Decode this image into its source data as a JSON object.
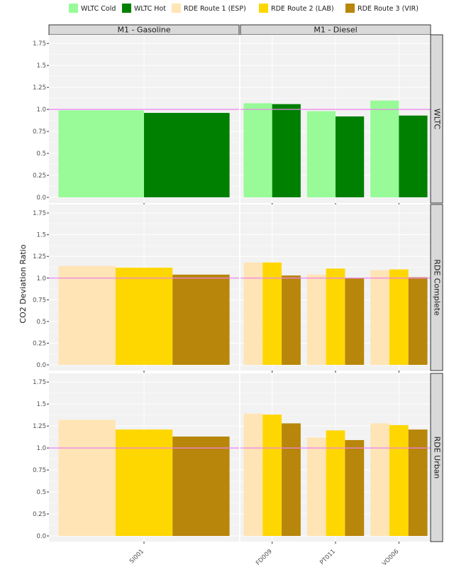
{
  "chart_data": {
    "type": "bar",
    "ylabel": "CO2 Deviation Ratio",
    "xlabel": "",
    "ylim": [
      0,
      1.8
    ],
    "yticks": [
      0.0,
      0.25,
      0.5,
      0.75,
      1.0,
      1.25,
      1.5,
      1.75
    ],
    "ytick_labels": [
      "0.0",
      "0.25",
      "0.5",
      "0.75",
      "1.0",
      "1.25",
      "1.5",
      "1.75"
    ],
    "reference_line": 1.0,
    "reference_color": "#ee82ee",
    "legend": {
      "placement": "top",
      "entries": [
        {
          "label": "WLTC Cold",
          "color": "#98fb98"
        },
        {
          "label": "WLTC Hot",
          "color": "#008000"
        },
        {
          "label": "RDE Route 1 (ESP)",
          "color": "#ffe4b5"
        },
        {
          "label": "RDE Route 2 (LAB)",
          "color": "#ffd700"
        },
        {
          "label": "RDE Route 3 (VIR)",
          "color": "#b8860b"
        }
      ]
    },
    "columns": [
      {
        "label": "M1 - Gasoline",
        "categories": [
          "SI001"
        ]
      },
      {
        "label": "M1 - Diesel",
        "categories": [
          "FD009",
          "PT011",
          "VO006"
        ]
      }
    ],
    "rows": [
      {
        "label": "WLTC",
        "series": [
          "WLTC Cold",
          "WLTC Hot"
        ],
        "values": {
          "SI001": [
            0.99,
            0.96
          ],
          "FD009": [
            1.07,
            1.06
          ],
          "PT011": [
            0.98,
            0.92
          ],
          "VO006": [
            1.1,
            0.93
          ]
        }
      },
      {
        "label": "RDE Complete",
        "series": [
          "RDE Route 1 (ESP)",
          "RDE Route 2 (LAB)",
          "RDE Route 3 (VIR)"
        ],
        "values": {
          "SI001": [
            1.14,
            1.12,
            1.04
          ],
          "FD009": [
            1.18,
            1.18,
            1.03
          ],
          "PT011": [
            1.04,
            1.11,
            1.0
          ],
          "VO006": [
            1.09,
            1.1,
            1.01
          ]
        }
      },
      {
        "label": "RDE Urban",
        "series": [
          "RDE Route 1 (ESP)",
          "RDE Route 2 (LAB)",
          "RDE Route 3 (VIR)"
        ],
        "values": {
          "SI001": [
            1.32,
            1.21,
            1.13
          ],
          "FD009": [
            1.39,
            1.38,
            1.28
          ],
          "PT011": [
            1.12,
            1.2,
            1.09
          ],
          "VO006": [
            1.28,
            1.26,
            1.21
          ]
        }
      }
    ]
  }
}
